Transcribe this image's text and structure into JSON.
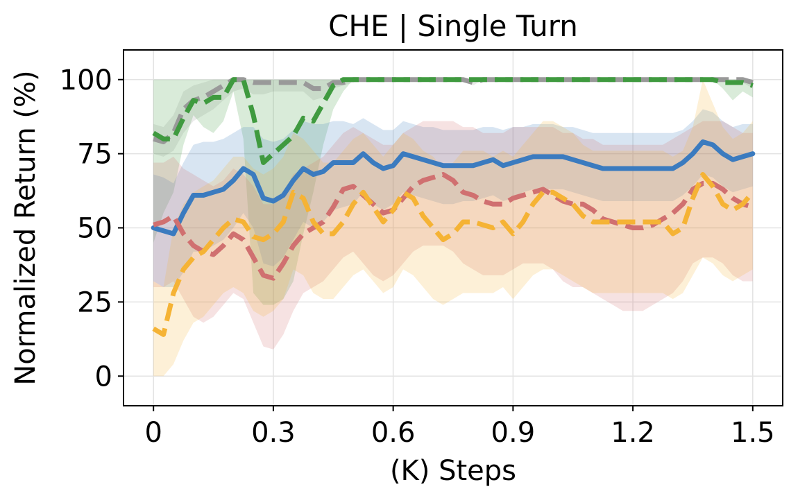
{
  "chart_data": {
    "type": "line",
    "title": "CHE | Single Turn",
    "xlabel": "(K) Steps",
    "ylabel": "Normalized Return (%)",
    "xlim": [
      -0.075,
      1.575
    ],
    "ylim": [
      -10,
      110
    ],
    "xticks": [
      0,
      0.3,
      0.6,
      0.9,
      1.2,
      1.5
    ],
    "xtick_labels": [
      "0",
      "0.3",
      "0.6",
      "0.9",
      "1.2",
      "1.5"
    ],
    "yticks": [
      0,
      25,
      50,
      75,
      100
    ],
    "ytick_labels": [
      "0",
      "25",
      "50",
      "75",
      "100"
    ],
    "grid": true,
    "x": [
      0,
      0.025,
      0.05,
      0.075,
      0.1,
      0.125,
      0.15,
      0.175,
      0.2,
      0.225,
      0.25,
      0.275,
      0.3,
      0.325,
      0.35,
      0.375,
      0.4,
      0.425,
      0.45,
      0.475,
      0.5,
      0.525,
      0.55,
      0.575,
      0.6,
      0.625,
      0.65,
      0.675,
      0.7,
      0.725,
      0.75,
      0.775,
      0.8,
      0.825,
      0.85,
      0.875,
      0.9,
      0.925,
      0.95,
      0.975,
      1.0,
      1.025,
      1.05,
      1.075,
      1.1,
      1.125,
      1.15,
      1.175,
      1.2,
      1.225,
      1.25,
      1.275,
      1.3,
      1.325,
      1.35,
      1.375,
      1.4,
      1.425,
      1.45,
      1.475,
      1.5
    ],
    "series": [
      {
        "name": "gray",
        "color": "#999999",
        "dash": "dashed",
        "values": [
          80,
          79,
          82,
          90,
          93,
          94,
          96,
          98,
          100,
          100,
          99,
          99,
          99,
          99,
          99,
          99,
          97,
          97,
          99,
          99,
          100,
          100,
          100,
          100,
          100,
          100,
          100,
          100,
          100,
          100,
          100,
          100,
          99,
          100,
          100,
          100,
          100,
          100,
          100,
          100,
          100,
          100,
          100,
          100,
          100,
          100,
          100,
          100,
          100,
          100,
          100,
          100,
          100,
          100,
          100,
          100,
          100,
          100,
          100,
          100,
          99
        ],
        "lower": [
          75,
          74,
          76,
          82,
          86,
          88,
          90,
          93,
          96,
          97,
          95,
          95,
          96,
          96,
          96,
          96,
          93,
          94,
          97,
          98,
          99,
          100,
          100,
          100,
          100,
          100,
          100,
          100,
          100,
          100,
          100,
          100,
          98,
          100,
          100,
          100,
          100,
          100,
          100,
          100,
          100,
          100,
          100,
          100,
          100,
          100,
          100,
          100,
          100,
          100,
          100,
          100,
          100,
          100,
          100,
          100,
          100,
          100,
          100,
          99,
          97
        ],
        "upper": [
          85,
          84,
          88,
          96,
          98,
          99,
          100,
          100,
          100,
          100,
          100,
          100,
          100,
          100,
          100,
          100,
          100,
          100,
          100,
          100,
          100,
          100,
          100,
          100,
          100,
          100,
          100,
          100,
          100,
          100,
          100,
          100,
          100,
          100,
          100,
          100,
          100,
          100,
          100,
          100,
          100,
          100,
          100,
          100,
          100,
          100,
          100,
          100,
          100,
          100,
          100,
          100,
          100,
          100,
          100,
          100,
          100,
          100,
          100,
          100,
          100
        ]
      },
      {
        "name": "green",
        "color": "#3f9a3f",
        "dash": "dashed",
        "values": [
          82,
          80,
          80,
          87,
          93,
          92,
          94,
          94,
          100,
          100,
          88,
          72,
          75,
          78,
          81,
          87,
          86,
          92,
          98,
          100,
          100,
          100,
          100,
          100,
          100,
          100,
          100,
          100,
          100,
          100,
          100,
          100,
          100,
          100,
          100,
          100,
          100,
          100,
          100,
          100,
          100,
          100,
          100,
          100,
          100,
          100,
          100,
          100,
          100,
          100,
          100,
          100,
          100,
          100,
          100,
          100,
          100,
          99,
          99,
          99,
          98
        ],
        "lower": [
          45,
          55,
          62,
          78,
          88,
          84,
          82,
          86,
          96,
          80,
          28,
          24,
          24,
          26,
          32,
          48,
          62,
          78,
          90,
          96,
          100,
          100,
          100,
          100,
          100,
          100,
          100,
          100,
          100,
          100,
          100,
          100,
          100,
          100,
          100,
          100,
          100,
          100,
          100,
          100,
          100,
          100,
          100,
          100,
          100,
          100,
          100,
          100,
          100,
          100,
          100,
          100,
          100,
          100,
          100,
          100,
          100,
          97,
          93,
          96,
          94
        ],
        "upper": [
          100,
          100,
          100,
          100,
          100,
          100,
          100,
          100,
          100,
          100,
          100,
          100,
          100,
          100,
          100,
          100,
          100,
          100,
          100,
          100,
          100,
          100,
          100,
          100,
          100,
          100,
          100,
          100,
          100,
          100,
          100,
          100,
          100,
          100,
          100,
          100,
          100,
          100,
          100,
          100,
          100,
          100,
          100,
          100,
          100,
          100,
          100,
          100,
          100,
          100,
          100,
          100,
          100,
          100,
          100,
          100,
          100,
          100,
          100,
          100,
          100
        ]
      },
      {
        "name": "blue",
        "color": "#3b7bbf",
        "dash": "solid",
        "values": [
          50,
          49,
          48,
          55,
          61,
          61,
          62,
          63,
          66,
          70,
          68,
          60,
          59,
          61,
          66,
          70,
          68,
          69,
          72,
          72,
          72,
          75,
          72,
          70,
          71,
          75,
          74,
          73,
          72,
          71,
          71,
          71,
          71,
          72,
          73,
          71,
          72,
          73,
          74,
          74,
          74,
          74,
          73,
          72,
          71,
          70,
          70,
          70,
          70,
          70,
          70,
          70,
          70,
          72,
          75,
          79,
          78,
          75,
          73,
          74,
          75
        ],
        "lower": [
          32,
          30,
          30,
          35,
          42,
          42,
          44,
          46,
          50,
          55,
          50,
          38,
          37,
          40,
          46,
          52,
          50,
          52,
          56,
          57,
          58,
          62,
          58,
          56,
          58,
          62,
          61,
          60,
          59,
          58,
          58,
          59,
          59,
          60,
          61,
          59,
          60,
          62,
          63,
          63,
          63,
          63,
          62,
          61,
          60,
          59,
          59,
          59,
          59,
          59,
          59,
          59,
          59,
          61,
          64,
          68,
          67,
          64,
          62,
          63,
          64
        ],
        "upper": [
          68,
          67,
          65,
          72,
          78,
          79,
          79,
          80,
          82,
          84,
          84,
          80,
          79,
          80,
          83,
          86,
          85,
          85,
          86,
          86,
          85,
          87,
          85,
          83,
          83,
          86,
          85,
          84,
          84,
          83,
          83,
          83,
          83,
          84,
          84,
          83,
          84,
          84,
          85,
          85,
          85,
          84,
          84,
          83,
          82,
          82,
          82,
          82,
          82,
          82,
          82,
          82,
          82,
          83,
          86,
          90,
          89,
          86,
          84,
          85,
          85
        ]
      },
      {
        "name": "red",
        "color": "#d07070",
        "dash": "dashed",
        "values": [
          51,
          52,
          54,
          48,
          44,
          42,
          41,
          44,
          48,
          46,
          40,
          34,
          33,
          38,
          44,
          48,
          50,
          52,
          57,
          63,
          64,
          61,
          58,
          55,
          56,
          60,
          64,
          66,
          67,
          68,
          66,
          62,
          61,
          59,
          58,
          58,
          60,
          61,
          62,
          63,
          61,
          59,
          58,
          58,
          56,
          53,
          52,
          51,
          50,
          50,
          51,
          53,
          55,
          58,
          63,
          65,
          65,
          63,
          60,
          58,
          57
        ],
        "lower": [
          30,
          30,
          32,
          26,
          20,
          18,
          20,
          24,
          28,
          26,
          18,
          10,
          9,
          14,
          22,
          28,
          30,
          32,
          36,
          40,
          42,
          38,
          34,
          32,
          34,
          38,
          42,
          44,
          44,
          44,
          42,
          38,
          36,
          34,
          34,
          34,
          36,
          38,
          38,
          38,
          36,
          32,
          30,
          30,
          28,
          26,
          24,
          22,
          22,
          22,
          24,
          26,
          28,
          32,
          38,
          40,
          40,
          38,
          34,
          32,
          32
        ],
        "upper": [
          72,
          72,
          74,
          70,
          68,
          66,
          64,
          66,
          70,
          68,
          64,
          58,
          58,
          62,
          68,
          70,
          72,
          74,
          78,
          82,
          84,
          82,
          80,
          78,
          78,
          82,
          84,
          86,
          86,
          86,
          86,
          84,
          84,
          82,
          82,
          82,
          84,
          84,
          84,
          84,
          84,
          82,
          82,
          80,
          80,
          78,
          78,
          78,
          78,
          78,
          78,
          78,
          80,
          82,
          84,
          86,
          86,
          86,
          84,
          82,
          82
        ]
      },
      {
        "name": "orange",
        "color": "#f5b335",
        "dash": "dashed",
        "values": [
          16,
          14,
          28,
          36,
          40,
          42,
          46,
          50,
          53,
          52,
          47,
          46,
          48,
          52,
          62,
          60,
          52,
          48,
          48,
          52,
          58,
          62,
          57,
          52,
          56,
          62,
          60,
          54,
          50,
          46,
          48,
          52,
          52,
          51,
          50,
          52,
          48,
          52,
          58,
          62,
          62,
          60,
          58,
          54,
          52,
          52,
          52,
          52,
          52,
          52,
          52,
          52,
          48,
          50,
          60,
          68,
          64,
          58,
          56,
          58,
          62
        ],
        "lower": [
          0,
          0,
          4,
          12,
          18,
          20,
          24,
          28,
          30,
          28,
          22,
          20,
          22,
          26,
          36,
          34,
          28,
          26,
          26,
          30,
          34,
          36,
          32,
          28,
          30,
          36,
          34,
          30,
          26,
          24,
          26,
          28,
          28,
          28,
          28,
          30,
          26,
          30,
          34,
          36,
          36,
          34,
          32,
          30,
          28,
          28,
          28,
          28,
          28,
          28,
          28,
          28,
          26,
          28,
          34,
          40,
          38,
          34,
          32,
          34,
          36
        ],
        "upper": [
          32,
          30,
          50,
          58,
          62,
          64,
          66,
          70,
          74,
          74,
          70,
          68,
          70,
          74,
          82,
          80,
          76,
          72,
          72,
          76,
          80,
          82,
          78,
          74,
          78,
          82,
          80,
          76,
          74,
          70,
          72,
          76,
          76,
          76,
          74,
          76,
          74,
          78,
          82,
          86,
          86,
          84,
          82,
          78,
          76,
          76,
          76,
          76,
          76,
          76,
          76,
          76,
          74,
          76,
          84,
          100,
          92,
          84,
          80,
          82,
          86
        ]
      }
    ]
  }
}
